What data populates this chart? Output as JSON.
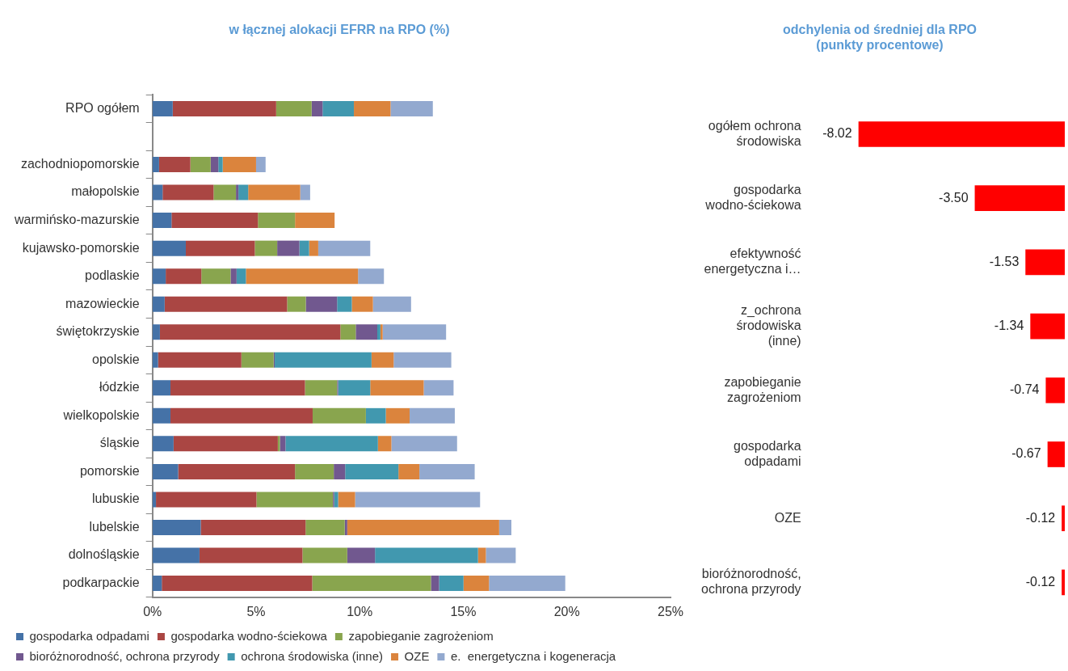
{
  "chart_data": [
    {
      "type": "bar",
      "orientation": "horizontal",
      "stacked": true,
      "title": "w łącznej alokacji EFRR na RPO (%)",
      "categories": [
        "RPO ogółem",
        null,
        "zachodniopomorskie",
        "małopolskie",
        "warmińsko-mazurskie",
        "kujawsko-pomorskie",
        "podlaskie",
        "mazowieckie",
        "świętokrzyskie",
        "opolskie",
        "łódzkie",
        "wielkopolskie",
        "śląskie",
        "pomorskie",
        "lubuskie",
        "lubelskie",
        "dolnośląskie",
        "podkarpackie"
      ],
      "series": [
        {
          "name": "gospodarka odpadami",
          "color": "#4572a7",
          "values": [
            0.98,
            null,
            0.32,
            0.49,
            0.92,
            1.61,
            0.64,
            0.59,
            0.36,
            0.27,
            0.87,
            0.87,
            1.02,
            1.24,
            0.17,
            2.33,
            2.27,
            0.45
          ]
        },
        {
          "name": "gospodarka wodno-ściekowa",
          "color": "#aa4643",
          "values": [
            4.99,
            null,
            1.51,
            2.46,
            4.17,
            3.33,
            1.72,
            5.91,
            8.71,
            4.02,
            6.49,
            6.86,
            5.03,
            5.64,
            4.85,
            5.06,
            4.97,
            7.26
          ]
        },
        {
          "name": "zapobieganie zagrożeniom",
          "color": "#89a54e",
          "values": [
            1.71,
            null,
            0.98,
            1.08,
            1.79,
            1.08,
            1.41,
            0.9,
            0.74,
            1.56,
            1.55,
            2.57,
            0.1,
            1.87,
            3.69,
            1.89,
            2.16,
            5.73
          ]
        },
        {
          "name": "bioróżnorodność, ochrona przyrody",
          "color": "#71588f",
          "values": [
            0.53,
            null,
            0.37,
            0.12,
            0,
            1.07,
            0.29,
            1.51,
            1.04,
            0.05,
            0.05,
            0,
            0.27,
            0.55,
            0.06,
            0.12,
            1.34,
            0.39
          ]
        },
        {
          "name": "ochrona środowiska (inne)",
          "color": "#4198af",
          "values": [
            1.51,
            null,
            0.21,
            0.47,
            0,
            0.47,
            0.45,
            0.71,
            0.15,
            4.67,
            1.55,
            0.96,
            4.46,
            2.57,
            0.19,
            0,
            4.97,
            1.18
          ]
        },
        {
          "name": "OZE",
          "color": "#db843d",
          "values": [
            1.77,
            null,
            1.61,
            2.51,
            1.91,
            0.44,
            5.41,
            1.02,
            0.11,
            1.07,
            2.58,
            1.15,
            0.65,
            1.01,
            0.82,
            7.33,
            0.38,
            1.23
          ]
        },
        {
          "name": "e.  energetyczna i kogeneracja",
          "color": "#93a9cf",
          "values": [
            2.04,
            null,
            0.46,
            0.48,
            0,
            2.51,
            1.25,
            1.84,
            3.06,
            2.78,
            1.44,
            2.18,
            3.17,
            2.67,
            6.03,
            0.59,
            1.44,
            3.68
          ]
        }
      ],
      "xlim": [
        0,
        25
      ],
      "xticks": [
        {
          "value": 0,
          "label": "0%"
        },
        {
          "value": 5,
          "label": "5%"
        },
        {
          "value": 10,
          "label": "10%"
        },
        {
          "value": 15,
          "label": "15%"
        },
        {
          "value": 20,
          "label": "20%"
        },
        {
          "value": 25,
          "label": "25%"
        }
      ],
      "grid": false,
      "legend": "bottom"
    },
    {
      "type": "bar",
      "orientation": "horizontal",
      "title": "odchylenia od średniej dla RPO (punkty procentowe)",
      "categories": [
        "ogółem ochrona środowiska",
        "gospodarka wodno-ściekowa",
        "efektywność energetyczna i…",
        "z_ochrona środowiska (inne)",
        "zapobieganie zagrożeniom",
        "gospodarka odpadami",
        "OZE",
        "bioróżnorodność, ochrona przyrody"
      ],
      "values": [
        -8.02,
        -3.5,
        -1.53,
        -1.34,
        -0.74,
        -0.67,
        -0.12,
        -0.12
      ],
      "value_labels": [
        "-8.02",
        "-3.50",
        "-1.53",
        "-1.34",
        "-0.74",
        "-0.67",
        "-0.12",
        "-0.12"
      ],
      "color": "#ff0000",
      "tick_labels": "y",
      "grid": false,
      "legend": false
    }
  ]
}
